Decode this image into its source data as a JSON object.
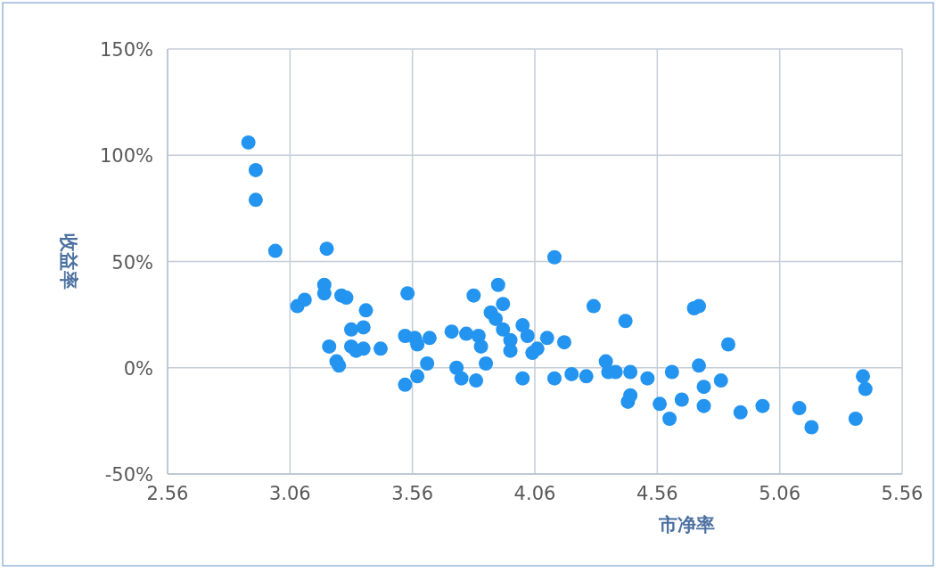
{
  "chart_data": {
    "type": "scatter",
    "xlabel": "市净率",
    "ylabel": "收益率",
    "xlim": [
      2.56,
      5.56
    ],
    "xticks": [
      2.56,
      3.06,
      3.56,
      4.06,
      4.56,
      5.06,
      5.56
    ],
    "ylim": [
      -50,
      150
    ],
    "yticks": [
      {
        "value": -50,
        "label": "-50%"
      },
      {
        "value": 0,
        "label": "0%"
      },
      {
        "value": 50,
        "label": "50%"
      },
      {
        "value": 100,
        "label": "100%"
      },
      {
        "value": 150,
        "label": "150%"
      }
    ],
    "grid": true,
    "marker": "circle",
    "color": "#2394ef",
    "x": [
      2.89,
      2.92,
      2.92,
      3.0,
      3.21,
      3.09,
      3.12,
      3.2,
      3.2,
      3.27,
      3.29,
      3.37,
      3.31,
      3.22,
      3.36,
      3.31,
      3.33,
      3.36,
      3.43,
      3.25,
      3.26,
      3.54,
      3.53,
      3.57,
      3.58,
      3.63,
      3.53,
      3.58,
      3.62,
      3.72,
      3.78,
      3.83,
      3.84,
      3.74,
      3.76,
      3.82,
      3.86,
      3.81,
      3.91,
      3.93,
      3.88,
      3.9,
      3.93,
      3.96,
      3.96,
      4.01,
      4.03,
      4.05,
      4.07,
      4.01,
      4.14,
      4.11,
      4.18,
      4.3,
      4.43,
      4.14,
      4.21,
      4.27,
      4.35,
      4.36,
      4.39,
      4.45,
      4.52,
      4.44,
      4.45,
      4.57,
      4.61,
      4.62,
      4.66,
      4.71,
      4.73,
      4.73,
      4.75,
      4.75,
      4.82,
      4.85,
      4.9,
      4.99,
      5.14,
      5.19,
      5.37,
      5.4,
      5.41
    ],
    "values": [
      106,
      93,
      79,
      55,
      56,
      29,
      32,
      39,
      35,
      34,
      33,
      27,
      18,
      10,
      19,
      10,
      8,
      9,
      9,
      3,
      1,
      35,
      15,
      14,
      11,
      14,
      -8,
      -4,
      2,
      17,
      16,
      15,
      10,
      0,
      -5,
      -6,
      2,
      34,
      39,
      30,
      26,
      23,
      18,
      13,
      8,
      20,
      15,
      7,
      9,
      -5,
      52,
      14,
      12,
      29,
      22,
      -5,
      -3,
      -4,
      3,
      -2,
      -2,
      -2,
      -5,
      -16,
      -13,
      -17,
      -24,
      -2,
      -15,
      28,
      29,
      1,
      -9,
      -18,
      -6,
      11,
      -21,
      -18,
      -19,
      -28,
      -24,
      -4,
      -10
    ]
  }
}
